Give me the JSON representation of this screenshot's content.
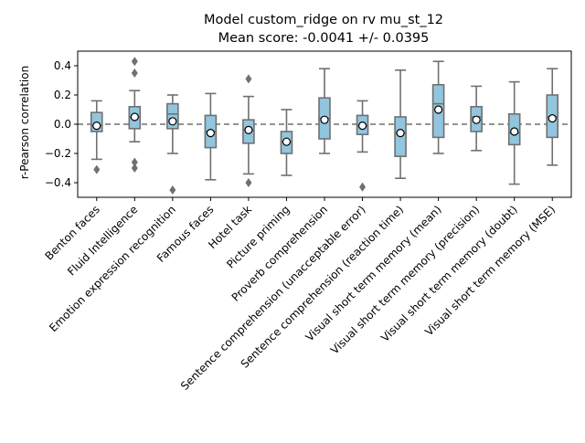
{
  "chart_data": {
    "type": "box",
    "title": "Model custom_ridge on rv mu_st_12",
    "subtitle": "Mean score: -0.0041 +/- 0.0395",
    "xlabel": "",
    "ylabel": "r-Pearson correlation",
    "ylim": [
      -0.5,
      0.5
    ],
    "yticks": [
      -0.4,
      -0.2,
      0.0,
      0.2,
      0.4
    ],
    "ytick_labels": [
      "−0.4",
      "−0.2",
      "0.0",
      "0.2",
      "0.4"
    ],
    "reference_line": 0.0,
    "grid": false,
    "legend": "none",
    "box_color": "#92c5de",
    "line_color": "#707070",
    "mean_marker_color": "#ffffff",
    "categories": [
      "Benton faces",
      "Fluid Intelligence",
      "Emotion expression recognition",
      "Famous faces",
      "Hotel task",
      "Picture priming",
      "Proverb comprehension",
      "Sentence comprehension (unacceptable error)",
      "Sentence comprehension (reaction time)",
      "Visual short term memory (mean)",
      "Visual short term memory (precision)",
      "Visual short term memory (doubt)",
      "Visual short term memory (MSE)"
    ],
    "boxes": [
      {
        "whisker_low": -0.24,
        "q1": -0.05,
        "median": -0.01,
        "q3": 0.08,
        "whisker_high": 0.16,
        "mean": -0.01,
        "outliers": [
          -0.31
        ]
      },
      {
        "whisker_low": -0.12,
        "q1": -0.03,
        "median": 0.05,
        "q3": 0.12,
        "whisker_high": 0.23,
        "mean": 0.05,
        "outliers": [
          -0.26,
          -0.3,
          0.35,
          0.43
        ]
      },
      {
        "whisker_low": -0.2,
        "q1": -0.03,
        "median": 0.07,
        "q3": 0.14,
        "whisker_high": 0.2,
        "mean": 0.02,
        "outliers": [
          -0.45
        ]
      },
      {
        "whisker_low": -0.38,
        "q1": -0.16,
        "median": -0.05,
        "q3": 0.06,
        "whisker_high": 0.21,
        "mean": -0.06,
        "outliers": []
      },
      {
        "whisker_low": -0.34,
        "q1": -0.13,
        "median": -0.04,
        "q3": 0.03,
        "whisker_high": 0.19,
        "mean": -0.04,
        "outliers": [
          -0.4,
          0.31
        ]
      },
      {
        "whisker_low": -0.35,
        "q1": -0.2,
        "median": -0.12,
        "q3": -0.05,
        "whisker_high": 0.1,
        "mean": -0.12,
        "outliers": []
      },
      {
        "whisker_low": -0.2,
        "q1": -0.1,
        "median": 0.04,
        "q3": 0.18,
        "whisker_high": 0.38,
        "mean": 0.03,
        "outliers": []
      },
      {
        "whisker_low": -0.19,
        "q1": -0.07,
        "median": -0.01,
        "q3": 0.06,
        "whisker_high": 0.16,
        "mean": -0.01,
        "outliers": [
          -0.43
        ]
      },
      {
        "whisker_low": -0.37,
        "q1": -0.22,
        "median": -0.06,
        "q3": 0.05,
        "whisker_high": 0.37,
        "mean": -0.06,
        "outliers": []
      },
      {
        "whisker_low": -0.2,
        "q1": -0.09,
        "median": 0.14,
        "q3": 0.27,
        "whisker_high": 0.43,
        "mean": 0.1,
        "outliers": []
      },
      {
        "whisker_low": -0.18,
        "q1": -0.05,
        "median": 0.05,
        "q3": 0.12,
        "whisker_high": 0.26,
        "mean": 0.03,
        "outliers": []
      },
      {
        "whisker_low": -0.41,
        "q1": -0.14,
        "median": -0.06,
        "q3": 0.07,
        "whisker_high": 0.29,
        "mean": -0.05,
        "outliers": []
      },
      {
        "whisker_low": -0.28,
        "q1": -0.09,
        "median": 0.05,
        "q3": 0.2,
        "whisker_high": 0.38,
        "mean": 0.04,
        "outliers": []
      }
    ]
  }
}
